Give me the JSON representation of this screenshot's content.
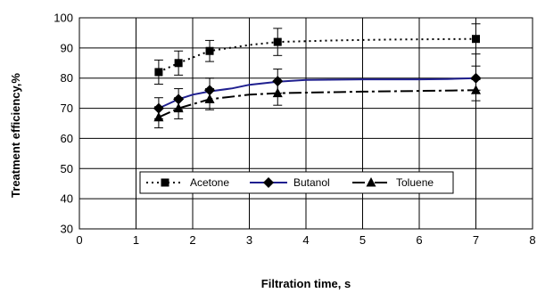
{
  "chart_data": {
    "type": "line",
    "xlabel": "Filtration time, s",
    "ylabel": "Treatment efficiency,%",
    "xlim": [
      0,
      8
    ],
    "ylim": [
      30,
      100
    ],
    "x_ticks": [
      0,
      1,
      2,
      3,
      4,
      5,
      6,
      7,
      8
    ],
    "y_ticks": [
      30,
      40,
      50,
      60,
      70,
      80,
      90,
      100
    ],
    "grid": true,
    "legend_position": "inside-middle",
    "series": [
      {
        "name": "Acetone",
        "marker": "square",
        "line_style": "dotted",
        "color": "#000000",
        "x": [
          1.4,
          1.75,
          2.3,
          3.5,
          7.0
        ],
        "y": [
          82,
          85,
          89,
          92,
          93
        ],
        "error": [
          4,
          4,
          3.5,
          4.5,
          5
        ],
        "curve": [
          [
            1.4,
            82
          ],
          [
            1.75,
            85
          ],
          [
            2.3,
            89
          ],
          [
            3.0,
            91
          ],
          [
            3.5,
            92
          ],
          [
            4.5,
            92.5
          ],
          [
            5.5,
            92.8
          ],
          [
            7.0,
            93
          ]
        ]
      },
      {
        "name": "Butanol",
        "marker": "diamond",
        "line_style": "solid",
        "color": "#1f1f8f",
        "x": [
          1.4,
          1.75,
          2.3,
          3.5,
          7.0
        ],
        "y": [
          70,
          73,
          76,
          79,
          80
        ],
        "error": [
          3.5,
          3.5,
          4,
          4,
          4
        ],
        "curve": [
          [
            1.4,
            70
          ],
          [
            1.75,
            73
          ],
          [
            2.0,
            74.5
          ],
          [
            2.3,
            75.6
          ],
          [
            2.7,
            76.6
          ],
          [
            3.0,
            77.8
          ],
          [
            3.5,
            78.8
          ],
          [
            4.0,
            79.4
          ],
          [
            5.0,
            79.6
          ],
          [
            6.0,
            79.6
          ],
          [
            6.5,
            79.7
          ],
          [
            7.0,
            80
          ]
        ]
      },
      {
        "name": "Toluene",
        "marker": "triangle",
        "line_style": "dashdot",
        "color": "#000000",
        "x": [
          1.4,
          1.75,
          2.3,
          3.5,
          7.0
        ],
        "y": [
          67,
          70,
          73,
          75,
          76
        ],
        "error": [
          3.5,
          3.5,
          3.5,
          4,
          3.5
        ],
        "curve": [
          [
            1.4,
            67
          ],
          [
            1.75,
            70
          ],
          [
            2.3,
            73
          ],
          [
            3.0,
            74.5
          ],
          [
            3.5,
            75
          ],
          [
            5.0,
            75.5
          ],
          [
            7.0,
            76
          ]
        ]
      }
    ]
  }
}
